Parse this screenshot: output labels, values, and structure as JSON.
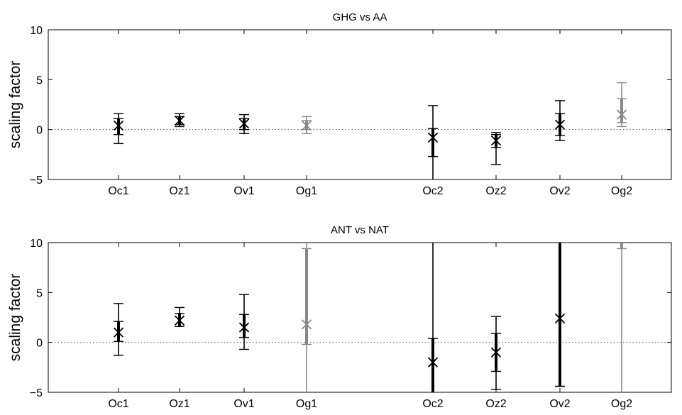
{
  "chart_data": [
    {
      "type": "errorbar",
      "title": "GHG vs AA",
      "ylabel": "scaling factor",
      "xlabel": "",
      "ylim": [
        -5,
        10
      ],
      "yticks": [
        -5,
        0,
        5,
        10
      ],
      "zero_line": "dotted",
      "grid": false,
      "categories": [
        "Oc1",
        "Oz1",
        "Ov1",
        "Og1",
        "Oc2",
        "Oz2",
        "Ov2",
        "Og2"
      ],
      "points": [
        {
          "label": "Oc1",
          "value": 0.4,
          "inner": [
            -0.5,
            1.1
          ],
          "outer": [
            -1.4,
            1.6
          ],
          "color": "#000000"
        },
        {
          "label": "Oz1",
          "value": 0.9,
          "inner": [
            0.5,
            1.3
          ],
          "outer": [
            0.3,
            1.6
          ],
          "color": "#000000"
        },
        {
          "label": "Ov1",
          "value": 0.6,
          "inner": [
            0.0,
            1.1
          ],
          "outer": [
            -0.4,
            1.5
          ],
          "color": "#000000"
        },
        {
          "label": "Og1",
          "value": 0.4,
          "inner": [
            0.0,
            0.9
          ],
          "outer": [
            -0.4,
            1.3
          ],
          "color": "#888888"
        },
        {
          "label": "Oc2",
          "value": -0.8,
          "inner": [
            -2.7,
            0.1
          ],
          "outer": [
            -5.0,
            2.4
          ],
          "color": "#000000"
        },
        {
          "label": "Oz2",
          "value": -1.1,
          "inner": [
            -1.8,
            -0.5
          ],
          "outer": [
            -3.5,
            -0.3
          ],
          "color": "#000000"
        },
        {
          "label": "Ov2",
          "value": 0.5,
          "inner": [
            -0.6,
            1.6
          ],
          "outer": [
            -1.1,
            2.9
          ],
          "color": "#000000"
        },
        {
          "label": "Og2",
          "value": 1.5,
          "inner": [
            0.7,
            3.1
          ],
          "outer": [
            0.3,
            4.7
          ],
          "color": "#888888"
        }
      ]
    },
    {
      "type": "errorbar",
      "title": "ANT vs NAT",
      "ylabel": "scaling factor",
      "xlabel": "",
      "ylim": [
        -5,
        10
      ],
      "yticks": [
        -5,
        0,
        5,
        10
      ],
      "zero_line": "dotted",
      "grid": false,
      "categories": [
        "Oc1",
        "Oz1",
        "Ov1",
        "Og1",
        "Oc2",
        "Oz2",
        "Ov2",
        "Og2"
      ],
      "points": [
        {
          "label": "Oc1",
          "value": 1.0,
          "inner": [
            0.1,
            2.1
          ],
          "outer": [
            -1.3,
            3.9
          ],
          "color": "#000000"
        },
        {
          "label": "Oz1",
          "value": 2.2,
          "inner": [
            1.6,
            2.9
          ],
          "outer": [
            1.6,
            3.5
          ],
          "color": "#000000"
        },
        {
          "label": "Ov1",
          "value": 1.5,
          "inner": [
            0.5,
            2.8
          ],
          "outer": [
            -0.7,
            4.8
          ],
          "color": "#000000"
        },
        {
          "label": "Og1",
          "value": 1.8,
          "inner": [
            -0.2,
            9.4
          ],
          "outer": [
            -5.0,
            10.0
          ],
          "color": "#888888"
        },
        {
          "label": "Oc2",
          "value": -2.0,
          "inner": [
            -5.0,
            0.4
          ],
          "outer": [
            -5.0,
            10.0
          ],
          "color": "#000000"
        },
        {
          "label": "Oz2",
          "value": -1.0,
          "inner": [
            -2.9,
            0.9
          ],
          "outer": [
            -4.7,
            2.6
          ],
          "color": "#000000"
        },
        {
          "label": "Ov2",
          "value": 2.4,
          "inner": [
            -4.4,
            10.0
          ],
          "outer": [
            -4.4,
            10.0
          ],
          "color": "#000000"
        },
        {
          "label": "Og2",
          "value": 9.4,
          "inner": [
            9.4,
            10.0
          ],
          "outer": [
            -5.0,
            10.0
          ],
          "color": "#888888",
          "hide_marker": true
        }
      ]
    }
  ]
}
